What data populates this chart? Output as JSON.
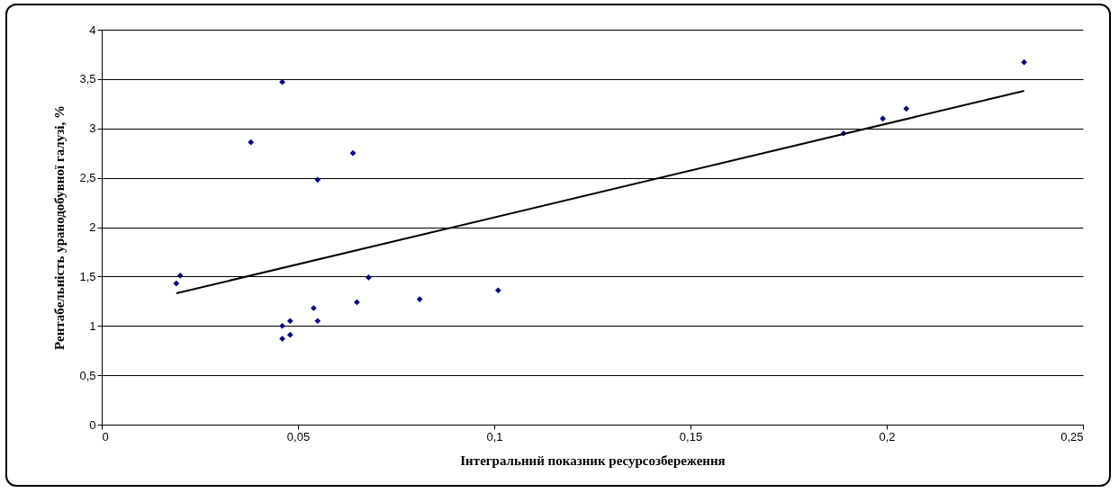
{
  "chart_data": {
    "type": "scatter",
    "xlabel": "Інтегральний показник ресурсозбереження",
    "ylabel": "Рентабельність уранодобувної галузі, %",
    "xlim": [
      0,
      0.25
    ],
    "xticks": [
      0,
      {
        "value": 0.05,
        "label": "0,05"
      },
      {
        "value": 0.1,
        "label": "0,1"
      },
      {
        "value": 0.15,
        "label": "0,15"
      },
      {
        "value": 0.2,
        "label": "0,2"
      },
      {
        "value": 0.25,
        "label": "0,25"
      }
    ],
    "ylim": [
      0,
      4
    ],
    "yticks": [
      0,
      {
        "value": 0.5,
        "label": "0,5"
      },
      1,
      {
        "value": 1.5,
        "label": "1,5"
      },
      2,
      {
        "value": 2.5,
        "label": "2,5"
      },
      3,
      {
        "value": 3.5,
        "label": "3,5"
      },
      4
    ],
    "grid": "y",
    "series": [
      {
        "marker": "diamond",
        "color": "#000080",
        "x": [
          0.019,
          0.02,
          0.038,
          0.046,
          0.046,
          0.046,
          0.048,
          0.048,
          0.054,
          0.055,
          0.055,
          0.064,
          0.065,
          0.068,
          0.081,
          0.101,
          0.189,
          0.199,
          0.205,
          0.235
        ],
        "values": [
          1.43,
          1.51,
          2.86,
          3.47,
          1.0,
          0.87,
          1.05,
          0.91,
          1.18,
          2.48,
          1.05,
          2.75,
          1.24,
          1.49,
          1.27,
          1.36,
          2.95,
          3.1,
          3.2,
          3.67
        ]
      },
      {
        "type": "line",
        "color": "#000000",
        "x": [
          0.019,
          0.235
        ],
        "values": [
          1.33,
          3.38
        ]
      }
    ]
  }
}
